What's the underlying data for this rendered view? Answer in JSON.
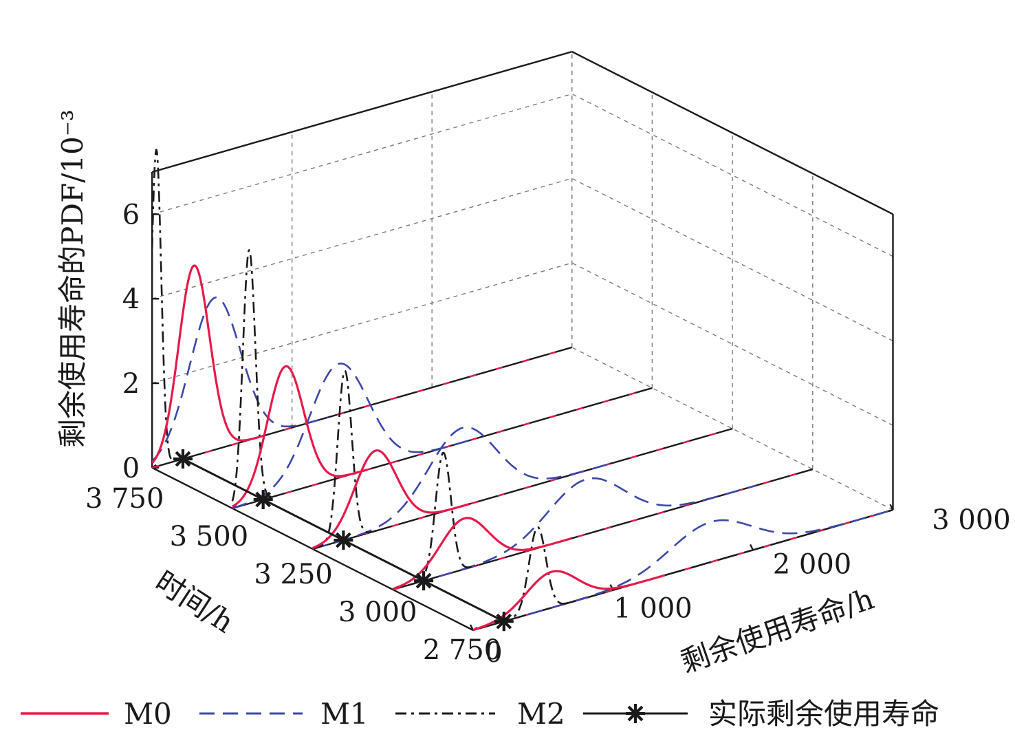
{
  "chart_data": {
    "type": "line",
    "projection": "3d-waterfall",
    "zlabel": "剩余使用寿命的PDF/10⁻³",
    "xlabel": "剩余使用寿命/h",
    "ylabel": "时间/h",
    "x_ticks": [
      "0",
      "1 000",
      "2 000",
      "3 000"
    ],
    "y_ticks": [
      "3 750",
      "3 500",
      "3 250",
      "3 000",
      "2 750"
    ],
    "z_ticks": [
      "0",
      "2",
      "4",
      "6"
    ],
    "x_range": [
      0,
      3000
    ],
    "y_range": [
      2750,
      3750
    ],
    "z_range": [
      0,
      7
    ],
    "grid": true,
    "legend_position": "bottom",
    "colors": {
      "M0": "#e8194a",
      "M1": "#3b47a8",
      "M2": "#1a1a1a",
      "actual": "#1a1a1a"
    },
    "series": [
      {
        "name": "M0",
        "style": "solid",
        "slices": [
          {
            "time": 3750,
            "peak": 300,
            "width": 110,
            "height": 4.5
          },
          {
            "time": 3500,
            "peak": 380,
            "width": 130,
            "height": 3.0
          },
          {
            "time": 3250,
            "peak": 450,
            "width": 150,
            "height": 1.9
          },
          {
            "time": 3000,
            "peak": 510,
            "width": 170,
            "height": 1.2
          },
          {
            "time": 2750,
            "peak": 560,
            "width": 180,
            "height": 0.85
          }
        ]
      },
      {
        "name": "M1",
        "style": "dashed",
        "slices": [
          {
            "time": 3750,
            "peak": 450,
            "width": 180,
            "height": 3.6
          },
          {
            "time": 3500,
            "peak": 760,
            "width": 210,
            "height": 2.7
          },
          {
            "time": 3250,
            "peak": 1070,
            "width": 240,
            "height": 1.85
          },
          {
            "time": 3000,
            "peak": 1380,
            "width": 270,
            "height": 1.3
          },
          {
            "time": 2750,
            "peak": 1700,
            "width": 290,
            "height": 0.95
          }
        ]
      },
      {
        "name": "M2",
        "style": "dash-dot",
        "slices": [
          {
            "time": 3750,
            "peak": 30,
            "width": 35,
            "height": 7.5
          },
          {
            "time": 3500,
            "peak": 120,
            "width": 45,
            "height": 6.0
          },
          {
            "time": 3250,
            "peak": 230,
            "width": 50,
            "height": 4.0
          },
          {
            "time": 3000,
            "peak": 360,
            "width": 55,
            "height": 2.9
          },
          {
            "time": 2750,
            "peak": 460,
            "width": 60,
            "height": 2.0
          }
        ]
      },
      {
        "name": "实际剩余使用寿命",
        "style": "solid-star",
        "points": [
          {
            "time": 3750,
            "rul": 0
          },
          {
            "time": 3500,
            "rul": 0
          },
          {
            "time": 3250,
            "rul": 0
          },
          {
            "time": 3000,
            "rul": 0
          },
          {
            "time": 2750,
            "rul": 0
          }
        ]
      }
    ],
    "legend": [
      {
        "key": "M0",
        "label": "M0",
        "style": "solid"
      },
      {
        "key": "M1",
        "label": "M1",
        "style": "dashed"
      },
      {
        "key": "M2",
        "label": "M2",
        "style": "dash-dot"
      },
      {
        "key": "actual",
        "label": "实际剩余使用寿命",
        "style": "solid-star"
      }
    ]
  }
}
